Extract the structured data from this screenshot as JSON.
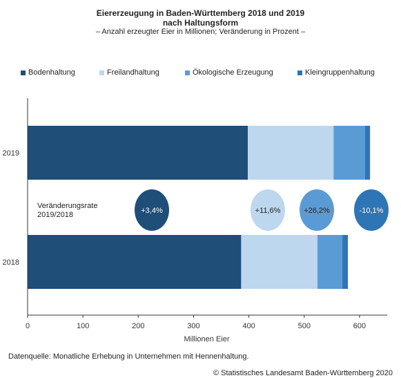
{
  "header": {
    "title_line1": "Eiererzeugung in Baden-Württemberg 2018 und 2019",
    "title_line2": "nach Haltungsform",
    "subtitle": "– Anzahl erzeugter Eier in Millionen; Veränderung in Prozent –"
  },
  "footer": {
    "source": "Datenquelle: Monatliche Erhebung in Unternehmen mit Hennenhaltung.",
    "copyright": "© Statistisches Landesamt Baden-Württemberg 2020"
  },
  "chart_data": {
    "type": "bar",
    "orientation": "horizontal",
    "stacked": true,
    "categories": [
      "2019",
      "2018"
    ],
    "series": [
      {
        "name": "Bodenhaltung",
        "color": "#1f4e79",
        "values": [
          398,
          386
        ]
      },
      {
        "name": "Freilandhaltung",
        "color": "#bdd7ee",
        "values": [
          155,
          138
        ]
      },
      {
        "name": "Ökologische Erzeugung",
        "color": "#5b9bd5",
        "values": [
          57,
          45
        ]
      },
      {
        "name": "Kleingruppenhaltung",
        "color": "#2e75b6",
        "values": [
          9,
          10
        ]
      }
    ],
    "change_label": "Veränderungsrate\n2019/2018",
    "changes": [
      {
        "series": "Bodenhaltung",
        "text": "+3,4%",
        "color": "#1f4e79",
        "text_color": "#ffffff"
      },
      {
        "series": "Freilandhaltung",
        "text": "+11,6%",
        "color": "#bdd7ee",
        "text_color": "#222222"
      },
      {
        "series": "Ökologische Erzeugung",
        "text": "+26,2%",
        "color": "#5b9bd5",
        "text_color": "#222222"
      },
      {
        "series": "Kleingruppenhaltung",
        "text": "-10,1%",
        "color": "#2e75b6",
        "text_color": "#ffffff"
      }
    ],
    "xlabel": "Millionen Eier",
    "xlim": [
      0,
      650
    ],
    "xticks": [
      0,
      100,
      200,
      300,
      400,
      500,
      600
    ],
    "grid": false,
    "legend_position": "top"
  }
}
